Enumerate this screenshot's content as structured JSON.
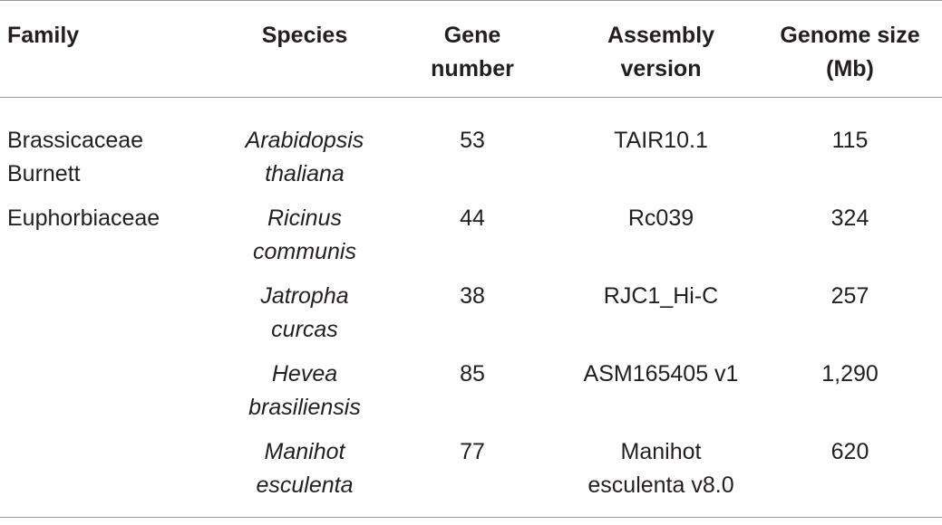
{
  "table": {
    "headers": {
      "family": [
        "Family"
      ],
      "species": [
        "Species"
      ],
      "gene_number": [
        "Gene",
        "number"
      ],
      "assembly_version": [
        "Assembly",
        "version"
      ],
      "genome_size": [
        "Genome size",
        "(Mb)"
      ]
    },
    "rows": [
      {
        "family": [
          "Brassicaceae",
          "Burnett"
        ],
        "species": [
          "Arabidopsis",
          "thaliana"
        ],
        "gene_number": "53",
        "assembly_version": [
          "TAIR10.1"
        ],
        "genome_size": "115"
      },
      {
        "family": [
          "Euphorbiaceae"
        ],
        "species": [
          "Ricinus",
          "communis"
        ],
        "gene_number": "44",
        "assembly_version": [
          "Rc039"
        ],
        "genome_size": "324"
      },
      {
        "family": [],
        "species": [
          "Jatropha",
          "curcas"
        ],
        "gene_number": "38",
        "assembly_version": [
          "RJC1_Hi-C"
        ],
        "genome_size": "257"
      },
      {
        "family": [],
        "species": [
          "Hevea",
          "brasiliensis"
        ],
        "gene_number": "85",
        "assembly_version": [
          "ASM165405 v1"
        ],
        "genome_size": "1,290"
      },
      {
        "family": [],
        "species": [
          "Manihot",
          "esculenta"
        ],
        "gene_number": "77",
        "assembly_version": [
          "Manihot",
          "esculenta v8.0"
        ],
        "genome_size": "620"
      }
    ]
  }
}
